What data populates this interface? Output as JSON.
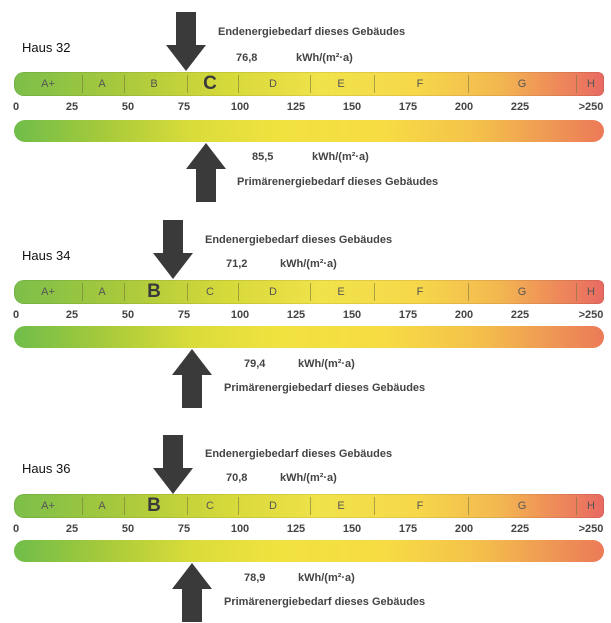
{
  "classes": [
    "A+",
    "A",
    "B",
    "C",
    "D",
    "E",
    "F",
    "G",
    "H"
  ],
  "scale_ticks": [
    "0",
    "25",
    "50",
    "75",
    "100",
    "125",
    "150",
    "175",
    "200",
    "225",
    ">250"
  ],
  "end_label": "Endenergiebedarf dieses Gebäudes",
  "prim_label": "Primärenergiebedarf dieses Gebäudes",
  "unit": "kWh/(m²·a)",
  "houses": [
    {
      "name": "Haus 32",
      "end_value": "76,8",
      "prim_value": "85,5",
      "class": "C"
    },
    {
      "name": "Haus 34",
      "end_value": "71,2",
      "prim_value": "79,4",
      "class": "B"
    },
    {
      "name": "Haus 36",
      "end_value": "70,8",
      "prim_value": "78,9",
      "class": "B"
    }
  ],
  "colors": {
    "arrow": "#3a3a3a",
    "scale_green": "#7cbf4a",
    "scale_yellow": "#f0e24a",
    "scale_red": "#e86a62"
  }
}
